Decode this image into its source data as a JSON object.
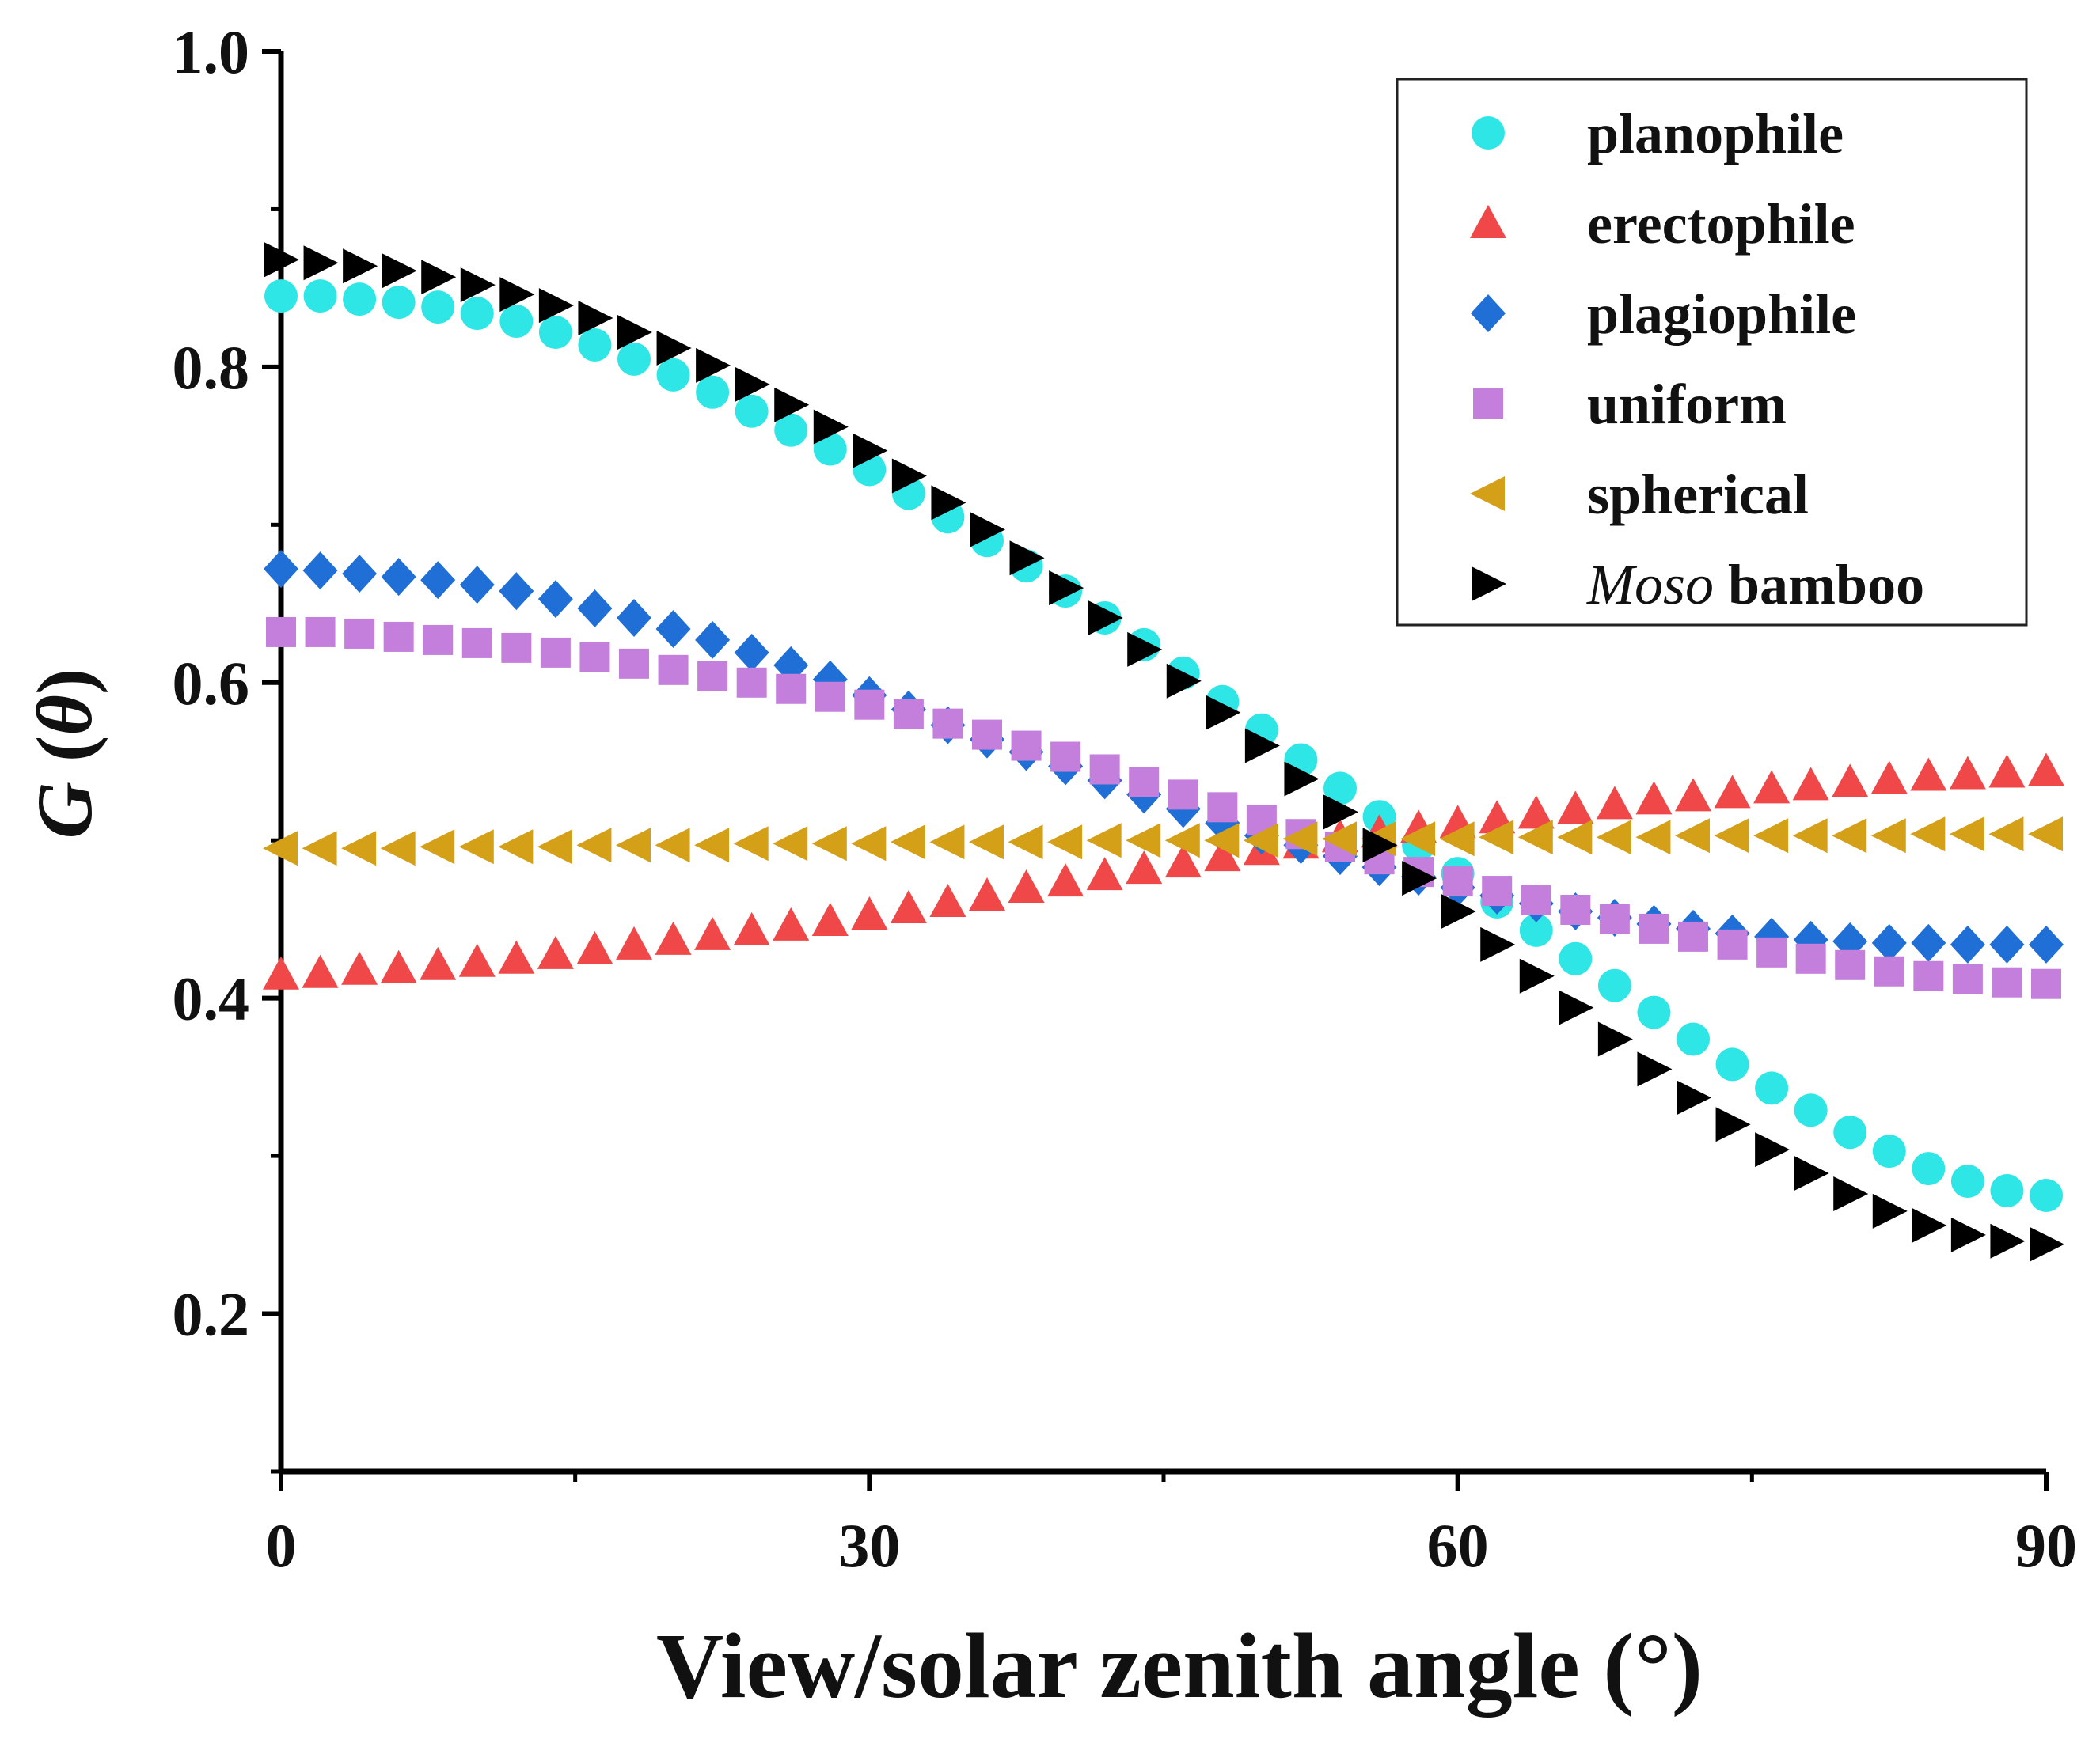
{
  "chart_data": {
    "type": "scatter",
    "xlabel": "View/solar zenith angle (°)",
    "ylabel_parts": [
      "G",
      "(",
      "θ",
      ")"
    ],
    "xlim": [
      0,
      90
    ],
    "ylim": [
      0.1,
      1.0
    ],
    "xticks": [
      0,
      30,
      60,
      90
    ],
    "xtick_labels": [
      "0",
      "30",
      "60",
      "90"
    ],
    "yticks": [
      0.2,
      0.4,
      0.6,
      0.8,
      1.0
    ],
    "ytick_labels": [
      "0.2",
      "0.4",
      "0.6",
      "0.8",
      "1.0"
    ],
    "grid": false,
    "legend_position": "top-right",
    "x": [
      0,
      2,
      4,
      6,
      8,
      10,
      12,
      14,
      16,
      18,
      20,
      22,
      24,
      26,
      28,
      30,
      32,
      34,
      36,
      38,
      40,
      42,
      44,
      46,
      48,
      50,
      52,
      54,
      56,
      58,
      60,
      62,
      64,
      66,
      68,
      70,
      72,
      74,
      76,
      78,
      80,
      82,
      84,
      86,
      88,
      90
    ],
    "series": [
      {
        "name": "planophile",
        "label_main": "planophile",
        "marker": "circle",
        "color": "#2ee6e6",
        "values": [
          0.845,
          0.845,
          0.843,
          0.841,
          0.838,
          0.834,
          0.829,
          0.822,
          0.814,
          0.805,
          0.795,
          0.784,
          0.772,
          0.76,
          0.748,
          0.735,
          0.72,
          0.705,
          0.69,
          0.674,
          0.658,
          0.641,
          0.624,
          0.606,
          0.588,
          0.57,
          0.551,
          0.533,
          0.515,
          0.497,
          0.479,
          0.461,
          0.443,
          0.425,
          0.408,
          0.391,
          0.374,
          0.358,
          0.343,
          0.329,
          0.315,
          0.303,
          0.292,
          0.284,
          0.278,
          0.275
        ]
      },
      {
        "name": "erectophile",
        "label_main": "erectophile",
        "marker": "triangle-up",
        "color": "#f04848",
        "values": [
          0.415,
          0.416,
          0.418,
          0.419,
          0.421,
          0.423,
          0.425,
          0.428,
          0.431,
          0.434,
          0.437,
          0.44,
          0.443,
          0.446,
          0.449,
          0.453,
          0.457,
          0.461,
          0.465,
          0.47,
          0.474,
          0.478,
          0.482,
          0.486,
          0.49,
          0.494,
          0.498,
          0.502,
          0.505,
          0.508,
          0.511,
          0.514,
          0.517,
          0.52,
          0.523,
          0.526,
          0.528,
          0.53,
          0.533,
          0.535,
          0.537,
          0.539,
          0.541,
          0.542,
          0.543,
          0.544
        ]
      },
      {
        "name": "plagiophile",
        "label_main": "plagiophile",
        "marker": "diamond",
        "color": "#1f6fd6",
        "values": [
          0.672,
          0.671,
          0.669,
          0.667,
          0.665,
          0.662,
          0.658,
          0.653,
          0.647,
          0.641,
          0.634,
          0.627,
          0.619,
          0.611,
          0.602,
          0.592,
          0.583,
          0.573,
          0.564,
          0.556,
          0.547,
          0.538,
          0.529,
          0.52,
          0.511,
          0.503,
          0.497,
          0.49,
          0.483,
          0.477,
          0.47,
          0.465,
          0.46,
          0.455,
          0.451,
          0.447,
          0.444,
          0.441,
          0.439,
          0.437,
          0.436,
          0.435,
          0.435,
          0.434,
          0.434,
          0.434
        ]
      },
      {
        "name": "uniform",
        "label_main": "uniform",
        "marker": "square",
        "color": "#c47fdc",
        "values": [
          0.632,
          0.632,
          0.631,
          0.629,
          0.627,
          0.625,
          0.622,
          0.619,
          0.616,
          0.612,
          0.608,
          0.604,
          0.6,
          0.596,
          0.591,
          0.586,
          0.58,
          0.574,
          0.567,
          0.56,
          0.553,
          0.545,
          0.537,
          0.529,
          0.521,
          0.513,
          0.504,
          0.496,
          0.488,
          0.48,
          0.474,
          0.468,
          0.462,
          0.456,
          0.45,
          0.444,
          0.439,
          0.434,
          0.429,
          0.425,
          0.421,
          0.417,
          0.414,
          0.412,
          0.41,
          0.409
        ]
      },
      {
        "name": "spherical",
        "label_main": "spherical",
        "marker": "triangle-left",
        "color": "#d4a017",
        "values": [
          0.495,
          0.495,
          0.495,
          0.495,
          0.496,
          0.496,
          0.496,
          0.496,
          0.497,
          0.497,
          0.497,
          0.497,
          0.498,
          0.498,
          0.498,
          0.498,
          0.499,
          0.499,
          0.499,
          0.499,
          0.499,
          0.5,
          0.5,
          0.5,
          0.5,
          0.5,
          0.501,
          0.501,
          0.501,
          0.501,
          0.501,
          0.502,
          0.502,
          0.502,
          0.502,
          0.502,
          0.503,
          0.503,
          0.503,
          0.503,
          0.503,
          0.503,
          0.504,
          0.504,
          0.504,
          0.504
        ]
      },
      {
        "name": "Moso bamboo",
        "label_italic": "Moso",
        "label_main": " bamboo",
        "marker": "triangle-right",
        "color": "#000000",
        "values": [
          0.868,
          0.866,
          0.864,
          0.861,
          0.857,
          0.852,
          0.846,
          0.839,
          0.831,
          0.822,
          0.812,
          0.801,
          0.789,
          0.776,
          0.762,
          0.747,
          0.731,
          0.714,
          0.697,
          0.679,
          0.66,
          0.641,
          0.621,
          0.601,
          0.581,
          0.56,
          0.539,
          0.518,
          0.497,
          0.476,
          0.455,
          0.434,
          0.414,
          0.394,
          0.374,
          0.355,
          0.337,
          0.32,
          0.304,
          0.289,
          0.276,
          0.265,
          0.256,
          0.25,
          0.246,
          0.244
        ]
      }
    ]
  }
}
